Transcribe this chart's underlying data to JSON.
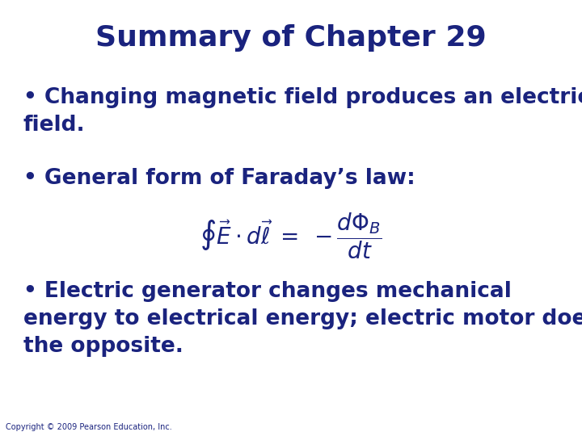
{
  "title": "Summary of Chapter 29",
  "title_color": "#1a237e",
  "title_fontsize": 26,
  "title_bold": true,
  "background_color": "#ffffff",
  "text_color": "#1a237e",
  "bullet_fontsize": 19,
  "bullet1": "Changing magnetic field produces an electric\nfield.",
  "bullet2": "General form of Faraday’s law:",
  "bullet3": "Electric generator changes mechanical\nenergy to electrical energy; electric motor does\nthe opposite.",
  "equation_fontsize": 20,
  "copyright": "Copyright © 2009 Pearson Education, Inc.",
  "copyright_fontsize": 7
}
